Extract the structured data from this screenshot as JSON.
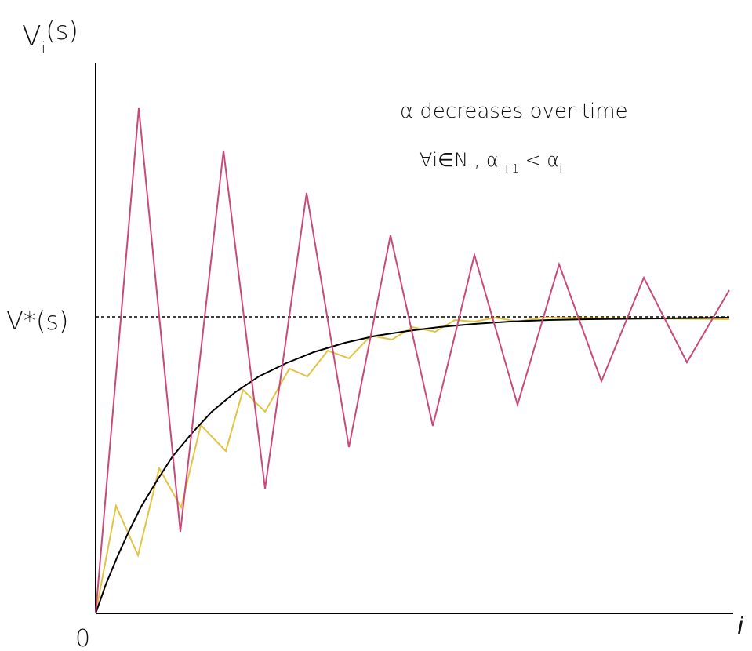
{
  "y_axis_label": {
    "base": "V",
    "sub": "i",
    "rest": "(s)"
  },
  "target_label": "V*(s)",
  "origin_label": "0",
  "x_axis_label": "i",
  "annotation": {
    "line1": "α decreases over time",
    "line2": {
      "lead": "∀i∈N , α",
      "sub1": "i+1",
      "mid": " < α",
      "sub2": "i"
    }
  }
}
